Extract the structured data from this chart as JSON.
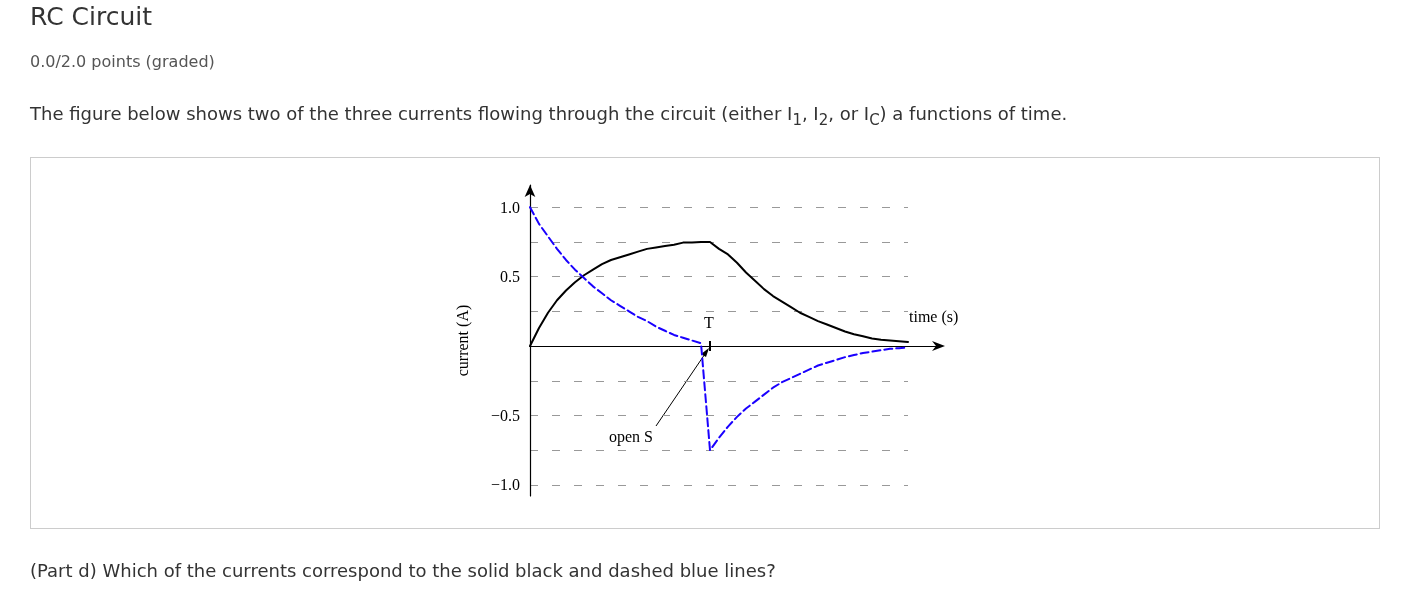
{
  "chart_data": {
    "type": "line",
    "title": "RC Circuit",
    "subtitle": "0.0/2.0 points (graded)",
    "annotations": [
      "The figure below shows two of the three currents flowing through the circuit (either I$_{1}$, I$_{2}$, or I$_{C}$) a functions of time.",
      "open S",
      "T",
      "(Part d) Which of the currents correspond to the solid black and dashed blue lines?"
    ],
    "xlabel": "time (s)",
    "ylabel": "current (A)",
    "categories": [
      null,
      null,
      null,
      null,
      null,
      null,
      null,
      null,
      null,
      null,
      null,
      null,
      null,
      null,
      null,
      null,
      null,
      null,
      null,
      null,
      null,
      null,
      null,
      null,
      null,
      null,
      null,
      null,
      null,
      null,
      null,
      null,
      null,
      null,
      null,
      null,
      null,
      null,
      null,
      null,
      null,
      null,
      null
    ],
    "ylim": [
      -1.08,
      1.16
    ],
    "yticks": [
      {
        "value": -1,
        "label": "−1.0"
      },
      {
        "value": -0.75,
        "label": null
      },
      {
        "value": -0.5,
        "label": "−0.5"
      },
      {
        "value": -0.25,
        "label": null
      },
      {
        "value": 0.25,
        "label": null
      },
      {
        "value": 0.5,
        "label": "0.5"
      },
      {
        "value": 0.75,
        "label": null
      },
      {
        "value": 1,
        "label": "1.0"
      }
    ],
    "grid": "y",
    "marker": "none",
    "series": [
      {
        "color": "#000000",
        "line_style": "solid",
        "values": [
          0,
          0.13,
          0.24,
          0.33,
          0.4,
          0.46,
          0.51,
          0.55,
          0.59,
          0.62,
          0.64,
          0.66,
          0.68,
          0.7,
          0.71,
          0.72,
          0.73,
          0.745,
          0.745,
          0.75,
          0.75,
          0.7,
          0.66,
          0.6,
          0.53,
          0.47,
          0.41,
          0.36,
          0.32,
          0.28,
          0.24,
          0.21,
          0.18,
          0.155,
          0.13,
          0.105,
          0.085,
          0.07,
          0.055,
          0.045,
          0.04,
          0.035,
          0.03
        ]
      },
      {
        "color": "#1a00ff",
        "line_style": "dashed",
        "values": [
          1.0,
          0.88,
          0.79,
          0.7,
          0.62,
          0.55,
          0.49,
          0.43,
          0.38,
          0.33,
          0.29,
          0.25,
          0.21,
          0.18,
          0.14,
          0.11,
          0.08,
          0.06,
          0.04,
          0.02,
          -0.75,
          -0.66,
          -0.58,
          -0.51,
          -0.45,
          -0.4,
          -0.35,
          -0.3,
          -0.26,
          -0.23,
          -0.2,
          -0.17,
          -0.14,
          -0.12,
          -0.1,
          -0.08,
          -0.065,
          -0.05,
          -0.04,
          -0.03,
          -0.02,
          -0.015,
          -0.01
        ]
      }
    ]
  }
}
